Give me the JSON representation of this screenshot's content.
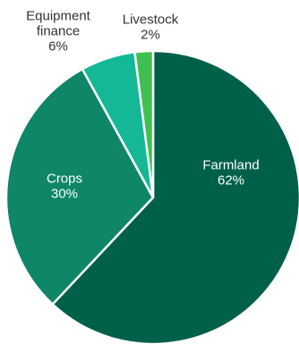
{
  "chart_data": {
    "type": "pie",
    "title": "",
    "categories": [
      "Farmland",
      "Crops",
      "Equipment finance",
      "Livestock"
    ],
    "values": [
      62,
      30,
      6,
      2
    ],
    "slices": [
      {
        "label_lines": [
          "Farmland"
        ],
        "value_label": "62%",
        "value": 62,
        "color": "#00604a",
        "label_color": "#ffffff",
        "label_placement": "inside"
      },
      {
        "label_lines": [
          "Crops"
        ],
        "value_label": "30%",
        "value": 30,
        "color": "#0e8667",
        "label_color": "#ffffff",
        "label_placement": "inside"
      },
      {
        "label_lines": [
          "Equipment",
          "finance"
        ],
        "value_label": "6%",
        "value": 6,
        "color": "#14b896",
        "label_color": "#333333",
        "label_placement": "outside"
      },
      {
        "label_lines": [
          "Livestock"
        ],
        "value_label": "2%",
        "value": 2,
        "color": "#3fc050",
        "label_color": "#333333",
        "label_placement": "outside"
      }
    ],
    "start_angle": "12 o'clock",
    "direction": "clockwise",
    "legend": "none"
  }
}
